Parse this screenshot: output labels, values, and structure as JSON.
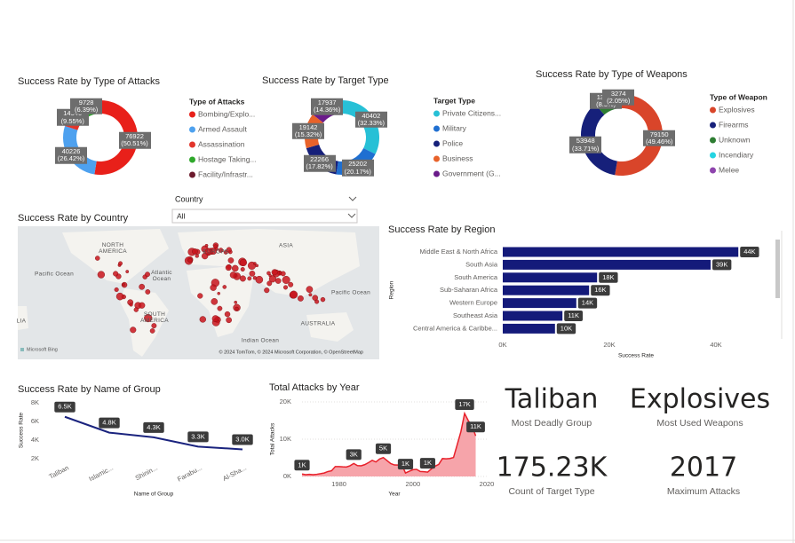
{
  "chart_data": [
    {
      "type": "donut",
      "title": "Success Rate by Type of Attacks",
      "legend_title": "Type of Attacks",
      "categories": [
        "Bombing/Explo...",
        "Armed Assault",
        "Assassination",
        "Hostage Taking...",
        "Facility/Infrastr..."
      ],
      "values": [
        76922,
        40226,
        14540,
        9728,
        5000
      ],
      "value_labels": [
        "76922 (50.51%)",
        "40226 (26.42%)",
        "14540 (9.55%)",
        "9728 (6.39%)",
        null
      ],
      "colors": [
        "#e8201a",
        "#4ea1ef",
        "#e2352b",
        "#2fa82b",
        "#6b1a2c"
      ]
    },
    {
      "type": "donut",
      "title": "Success Rate by Target Type",
      "legend_title": "Target Type",
      "categories": [
        "Private Citizens...",
        "Military",
        "Police",
        "Business",
        "Government (G..."
      ],
      "values": [
        40402,
        25202,
        22266,
        19142,
        17937
      ],
      "value_labels": [
        "40402 (32.33%)",
        "25202 (20.17%)",
        "22266 (17.82%)",
        "19142 (15.32%)",
        "17937 (14.36%)"
      ],
      "colors": [
        "#27c0d6",
        "#1f6fd1",
        "#16207a",
        "#e8622a",
        "#6a1b8a"
      ]
    },
    {
      "type": "donut",
      "title": "Success Rate by Type of Weapons",
      "legend_title": "Type of Weapon",
      "categories": [
        "Explosives",
        "Firearms",
        "Unknown",
        "Incendiary",
        "Melee"
      ],
      "values": [
        79150,
        53948,
        13277,
        3274,
        500
      ],
      "value_labels": [
        "79150 (49.46%)",
        "53948 (33.71%)",
        "13277 (8.3%)",
        "3274 (2.05%)",
        null
      ],
      "colors": [
        "#d9452a",
        "#16207a",
        "#2e7d32",
        "#25d4e2",
        "#8e44ad"
      ]
    },
    {
      "type": "map",
      "title": "Success Rate by Country",
      "labels": [
        "NORTH AMERICA",
        "EUROPE",
        "ASIA",
        "Pacific Ocean",
        "Atlantic Ocean",
        "SOUTH AMERICA",
        "Indian Ocean",
        "AUSTRALIA",
        "Pacific Ocean",
        "LIA"
      ],
      "attribution": "© 2024 TomTom, © 2024 Microsoft Corporation, © OpenStreetMap",
      "logo": "Microsoft Bing",
      "color": "#c8141c"
    },
    {
      "type": "hbar",
      "title": "Success Rate by Region",
      "x_label": "Success Rate",
      "y_label": "Region",
      "categories": [
        "Middle East & North Africa",
        "South Asia",
        "South America",
        "Sub-Saharan Africa",
        "Western Europe",
        "Southeast Asia",
        "Central America & Caribbe..."
      ],
      "values": [
        44200,
        39000,
        17700,
        16200,
        13800,
        11200,
        9800
      ],
      "value_labels": [
        "44K",
        "39K",
        "18K",
        "16K",
        "14K",
        "11K",
        "10K"
      ],
      "color": "#141a7a",
      "xlim": [
        0,
        50000
      ],
      "xticks": [
        {
          "value": 0,
          "label": "0K"
        },
        {
          "value": 20000,
          "label": "20K"
        },
        {
          "value": 40000,
          "label": "40K"
        }
      ]
    },
    {
      "type": "line",
      "title": "Success Rate by Name of Group",
      "x_label": "Name of Group",
      "y_label": "Success Rate",
      "categories": [
        "Taliban",
        "Islamic...",
        "Shinin...",
        "Farabu...",
        "Al-Sha..."
      ],
      "values": [
        6500,
        4800,
        4300,
        3300,
        3000
      ],
      "value_labels": [
        "6.5K",
        "4.8K",
        "4.3K",
        "3.3K",
        "3.0K"
      ],
      "color": "#1a237e",
      "ylim": [
        2000,
        8000
      ],
      "yticks": [
        {
          "value": 2000,
          "label": "2K"
        },
        {
          "value": 4000,
          "label": "4K"
        },
        {
          "value": 6000,
          "label": "6K"
        },
        {
          "value": 8000,
          "label": "8K"
        }
      ]
    },
    {
      "type": "area",
      "title": "Total Attacks by Year",
      "x_label": "Year",
      "y_label": "Total Attacks",
      "x": [
        1970,
        1971,
        1972,
        1973,
        1974,
        1975,
        1976,
        1977,
        1978,
        1979,
        1980,
        1981,
        1982,
        1983,
        1984,
        1985,
        1986,
        1987,
        1988,
        1989,
        1990,
        1991,
        1992,
        1994,
        1995,
        1996,
        1997,
        1998,
        1999,
        2000,
        2001,
        2002,
        2003,
        2004,
        2005,
        2006,
        2007,
        2008,
        2009,
        2010,
        2011,
        2012,
        2013,
        2014,
        2015,
        2016,
        2017
      ],
      "values": [
        651,
        471,
        568,
        473,
        581,
        740,
        923,
        1319,
        1526,
        2662,
        2662,
        2586,
        2544,
        2870,
        3495,
        2915,
        2860,
        3183,
        3721,
        4324,
        3887,
        4683,
        5071,
        3456,
        3081,
        3058,
        3197,
        934,
        1395,
        1814,
        1906,
        1333,
        1278,
        1166,
        2017,
        2758,
        3242,
        4805,
        4721,
        4826,
        5076,
        8522,
        12036,
        16903,
        14965,
        13587,
        10900
      ],
      "value_labels": [
        "1K",
        null,
        null,
        null,
        null,
        null,
        null,
        null,
        null,
        null,
        null,
        null,
        null,
        null,
        "3K",
        null,
        null,
        null,
        null,
        null,
        null,
        null,
        "5K",
        null,
        null,
        null,
        null,
        "1K",
        null,
        null,
        null,
        null,
        null,
        "1K",
        null,
        null,
        null,
        null,
        null,
        null,
        null,
        null,
        null,
        "17K",
        null,
        null,
        "11K"
      ],
      "color": "#e8202a",
      "fill": "#f6a4aa",
      "xlim": [
        1970,
        2020
      ],
      "xticks": [
        1980,
        2000,
        2020
      ],
      "ylim": [
        0,
        20000
      ],
      "yticks": [
        {
          "value": 0,
          "label": "0K"
        },
        {
          "value": 10000,
          "label": "10K"
        },
        {
          "value": 20000,
          "label": "20K"
        }
      ],
      "grid": true
    }
  ],
  "slicer": {
    "title": "Country",
    "value": "All"
  },
  "cards": [
    {
      "value": "Taliban",
      "label": "Most Deadly Group"
    },
    {
      "value": "Explosives",
      "label": "Most Used Weapons"
    },
    {
      "value": "175.23K",
      "label": "Count of Target Type"
    },
    {
      "value": 2017,
      "label": "Maximum Attacks"
    }
  ]
}
